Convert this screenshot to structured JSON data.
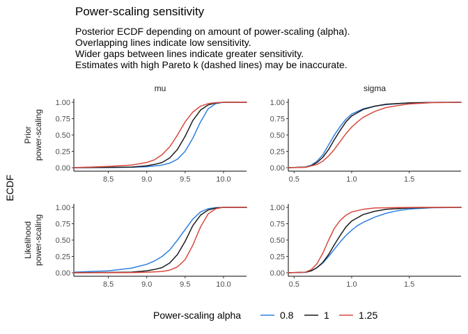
{
  "chart_data": {
    "type": "line",
    "title": "Power-scaling sensitivity",
    "subtitle": [
      "Posterior ECDF depending on amount of power-scaling (alpha).",
      "Overlapping lines indicate low sensitivity.",
      "Wider gaps between lines indicate greater sensitivity.",
      "Estimates with high Pareto k (dashed lines) may be inaccurate."
    ],
    "ylabel": "ECDF",
    "columns": [
      "mu",
      "sigma"
    ],
    "rows": [
      "Prior\npower-scaling",
      "Likelihood\npower-scaling"
    ],
    "legend": {
      "title": "Power-scaling alpha",
      "position": "bottom",
      "entries": [
        {
          "label": "0.8",
          "color": "#2f7fdf"
        },
        {
          "label": "1",
          "color": "#1a1a1a"
        },
        {
          "label": "1.25",
          "color": "#d9483b"
        }
      ]
    },
    "y_ticks": [
      "0.00",
      "0.25",
      "0.50",
      "0.75",
      "1.00"
    ],
    "ylim": [
      0,
      1
    ],
    "x_axes": {
      "mu": {
        "xlim": [
          8.05,
          10.3
        ],
        "ticks": [
          8.5,
          9.0,
          9.5,
          10.0
        ],
        "tick_labels": [
          "8.5",
          "9.0",
          "9.5",
          "10.0"
        ]
      },
      "sigma": {
        "xlim": [
          0.45,
          1.95
        ],
        "ticks": [
          0.5,
          1.0,
          1.5
        ],
        "tick_labels": [
          "0.5",
          "1.0",
          "1.5"
        ]
      }
    },
    "panels": [
      {
        "row": "Prior\npower-scaling",
        "col": "mu",
        "series": [
          {
            "name": "0.8",
            "x": [
              8.05,
              8.5,
              8.8,
              9.0,
              9.2,
              9.3,
              9.4,
              9.5,
              9.6,
              9.7,
              9.8,
              9.9,
              10.0,
              10.3
            ],
            "y": [
              0.0,
              0.002,
              0.006,
              0.015,
              0.04,
              0.07,
              0.13,
              0.25,
              0.45,
              0.7,
              0.9,
              0.98,
              1.0,
              1.0
            ]
          },
          {
            "name": "1",
            "x": [
              8.05,
              8.5,
              8.8,
              9.0,
              9.1,
              9.2,
              9.3,
              9.4,
              9.5,
              9.6,
              9.7,
              9.8,
              9.9,
              10.0,
              10.3
            ],
            "y": [
              0.0,
              0.005,
              0.01,
              0.03,
              0.05,
              0.08,
              0.15,
              0.28,
              0.48,
              0.72,
              0.88,
              0.96,
              0.99,
              1.0,
              1.0
            ]
          },
          {
            "name": "1.25",
            "x": [
              8.05,
              8.5,
              8.8,
              9.0,
              9.1,
              9.2,
              9.3,
              9.4,
              9.5,
              9.6,
              9.7,
              9.8,
              9.9,
              10.0,
              10.3
            ],
            "y": [
              0.0,
              0.02,
              0.04,
              0.08,
              0.12,
              0.2,
              0.32,
              0.5,
              0.7,
              0.85,
              0.94,
              0.98,
              0.995,
              1.0,
              1.0
            ]
          }
        ]
      },
      {
        "row": "Prior\npower-scaling",
        "col": "sigma",
        "series": [
          {
            "name": "0.8",
            "x": [
              0.45,
              0.6,
              0.65,
              0.7,
              0.75,
              0.8,
              0.85,
              0.9,
              0.95,
              1.0,
              1.1,
              1.2,
              1.3,
              1.5,
              1.7,
              1.95
            ],
            "y": [
              0.0,
              0.01,
              0.04,
              0.1,
              0.2,
              0.35,
              0.5,
              0.63,
              0.74,
              0.82,
              0.9,
              0.94,
              0.965,
              0.99,
              0.998,
              1.0
            ]
          },
          {
            "name": "1",
            "x": [
              0.45,
              0.6,
              0.65,
              0.7,
              0.75,
              0.8,
              0.85,
              0.9,
              0.95,
              1.0,
              1.1,
              1.2,
              1.3,
              1.5,
              1.7,
              1.95
            ],
            "y": [
              0.0,
              0.01,
              0.03,
              0.08,
              0.16,
              0.28,
              0.43,
              0.57,
              0.7,
              0.79,
              0.89,
              0.94,
              0.97,
              0.99,
              0.998,
              1.0
            ]
          },
          {
            "name": "1.25",
            "x": [
              0.45,
              0.6,
              0.7,
              0.75,
              0.8,
              0.85,
              0.9,
              0.95,
              1.0,
              1.05,
              1.1,
              1.2,
              1.3,
              1.4,
              1.5,
              1.7,
              1.95
            ],
            "y": [
              0.0,
              0.005,
              0.05,
              0.1,
              0.18,
              0.28,
              0.4,
              0.52,
              0.62,
              0.7,
              0.77,
              0.86,
              0.92,
              0.95,
              0.975,
              0.995,
              1.0
            ]
          }
        ]
      },
      {
        "row": "Likelihood\npower-scaling",
        "col": "mu",
        "series": [
          {
            "name": "0.8",
            "x": [
              8.05,
              8.5,
              8.8,
              9.0,
              9.1,
              9.2,
              9.3,
              9.4,
              9.5,
              9.6,
              9.7,
              9.8,
              9.9,
              10.0,
              10.3
            ],
            "y": [
              0.01,
              0.03,
              0.07,
              0.13,
              0.18,
              0.25,
              0.35,
              0.5,
              0.66,
              0.82,
              0.93,
              0.98,
              0.995,
              1.0,
              1.0
            ]
          },
          {
            "name": "1",
            "x": [
              8.05,
              8.5,
              8.8,
              9.0,
              9.1,
              9.2,
              9.3,
              9.4,
              9.5,
              9.6,
              9.7,
              9.8,
              9.9,
              10.0,
              10.3
            ],
            "y": [
              0.0,
              0.005,
              0.01,
              0.03,
              0.05,
              0.08,
              0.15,
              0.28,
              0.48,
              0.72,
              0.88,
              0.96,
              0.99,
              1.0,
              1.0
            ]
          },
          {
            "name": "1.25",
            "x": [
              8.05,
              8.5,
              8.8,
              9.0,
              9.2,
              9.3,
              9.4,
              9.5,
              9.6,
              9.7,
              9.8,
              9.9,
              10.0,
              10.3
            ],
            "y": [
              0.0,
              0.001,
              0.003,
              0.008,
              0.02,
              0.04,
              0.09,
              0.2,
              0.42,
              0.7,
              0.9,
              0.98,
              1.0,
              1.0
            ]
          }
        ]
      },
      {
        "row": "Likelihood\npower-scaling",
        "col": "sigma",
        "series": [
          {
            "name": "0.8",
            "x": [
              0.45,
              0.6,
              0.65,
              0.7,
              0.75,
              0.8,
              0.85,
              0.9,
              0.95,
              1.0,
              1.05,
              1.1,
              1.2,
              1.3,
              1.4,
              1.5,
              1.7,
              1.95
            ],
            "y": [
              0.0,
              0.005,
              0.03,
              0.08,
              0.15,
              0.25,
              0.36,
              0.47,
              0.57,
              0.65,
              0.72,
              0.77,
              0.85,
              0.91,
              0.95,
              0.975,
              0.995,
              1.0
            ]
          },
          {
            "name": "1",
            "x": [
              0.45,
              0.6,
              0.65,
              0.7,
              0.75,
              0.8,
              0.85,
              0.9,
              0.95,
              1.0,
              1.1,
              1.2,
              1.3,
              1.5,
              1.7,
              1.95
            ],
            "y": [
              0.0,
              0.01,
              0.03,
              0.08,
              0.16,
              0.28,
              0.43,
              0.57,
              0.7,
              0.79,
              0.89,
              0.94,
              0.97,
              0.99,
              0.998,
              1.0
            ]
          },
          {
            "name": "1.25",
            "x": [
              0.45,
              0.6,
              0.65,
              0.7,
              0.75,
              0.8,
              0.85,
              0.9,
              0.95,
              1.0,
              1.1,
              1.2,
              1.4,
              1.6,
              1.95
            ],
            "y": [
              0.0,
              0.01,
              0.05,
              0.14,
              0.3,
              0.5,
              0.68,
              0.8,
              0.88,
              0.93,
              0.97,
              0.99,
              0.998,
              1.0,
              1.0
            ]
          }
        ]
      }
    ]
  }
}
